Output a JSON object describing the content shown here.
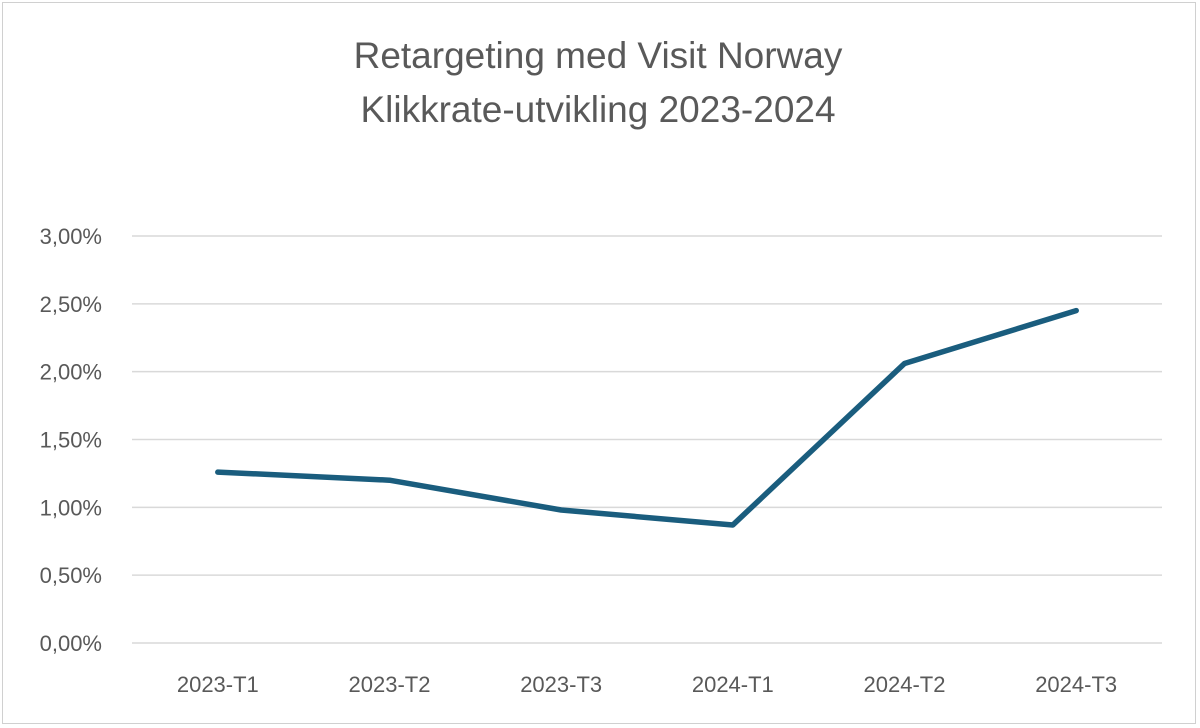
{
  "chart_data": {
    "type": "line",
    "title": [
      "Retargeting med Visit Norway",
      "Klikkrate-utvikling 2023-2024"
    ],
    "categories": [
      "2023-T1",
      "2023-T2",
      "2023-T3",
      "2024-T1",
      "2024-T2",
      "2024-T3"
    ],
    "series": [
      {
        "name": "Klikkrate",
        "values": [
          1.26,
          1.2,
          0.98,
          0.87,
          2.06,
          2.45
        ],
        "color": "#1a5d7e"
      }
    ],
    "y_ticks": [
      {
        "value": 0,
        "label": "0,00%"
      },
      {
        "value": 0.5,
        "label": "0,50%"
      },
      {
        "value": 1.0,
        "label": "1,00%"
      },
      {
        "value": 1.5,
        "label": "1,50%"
      },
      {
        "value": 2.0,
        "label": "2,00%"
      },
      {
        "value": 2.5,
        "label": "2,50%"
      },
      {
        "value": 3.0,
        "label": "3,00%"
      }
    ],
    "ylim": [
      0,
      3.0
    ],
    "xlabel": "",
    "ylabel": "",
    "grid": true,
    "legend": "none"
  }
}
